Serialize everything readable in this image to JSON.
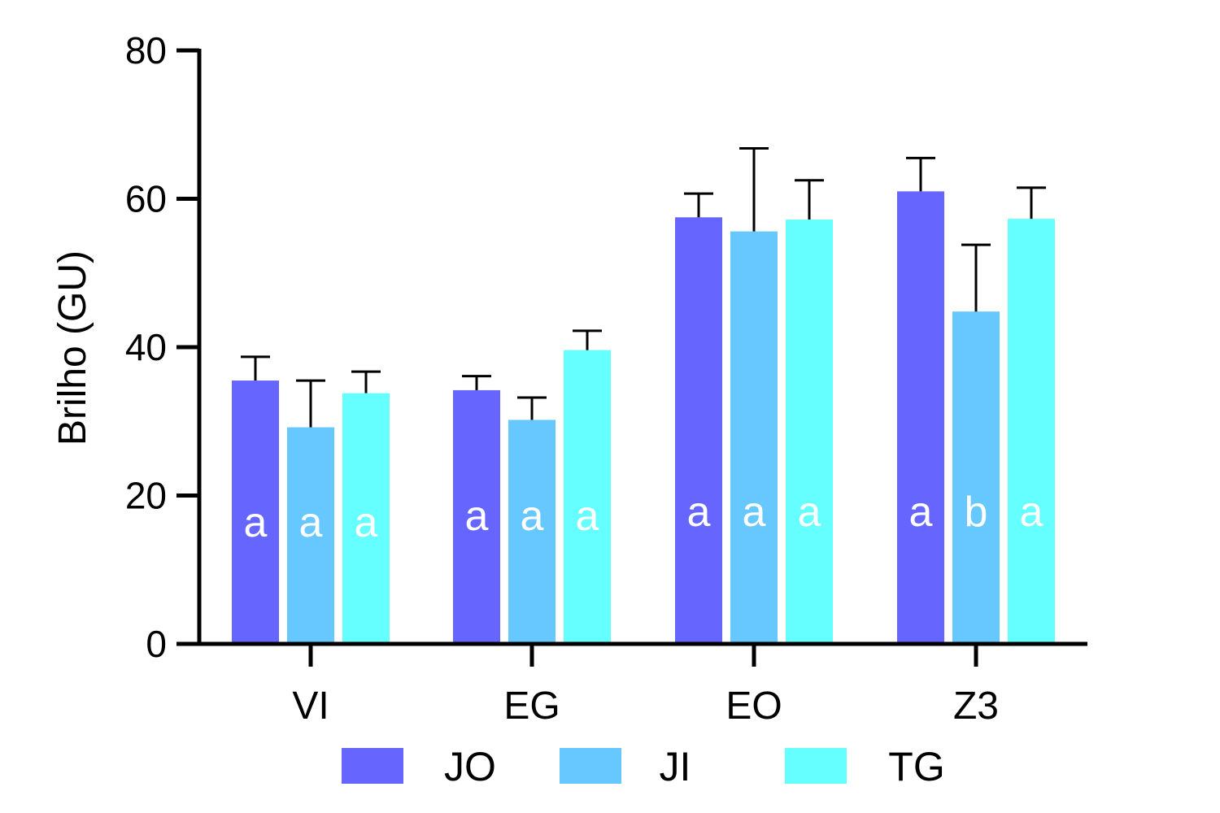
{
  "chart_data": {
    "type": "bar",
    "title": "",
    "xlabel": "",
    "ylabel": "Brilho (GU)",
    "ylim": [
      0,
      80
    ],
    "yticks": [
      0,
      20,
      40,
      60,
      80
    ],
    "grid": false,
    "legend_position": "bottom",
    "categories": [
      "VI",
      "EG",
      "EO",
      "Z3"
    ],
    "series": [
      {
        "name": "JO",
        "color": "#6666ff",
        "values": [
          35.5,
          34.2,
          57.5,
          61.0
        ],
        "errors": [
          3.2,
          1.9,
          3.2,
          4.5
        ],
        "letters": [
          "a",
          "a",
          "a",
          "a"
        ]
      },
      {
        "name": "JI",
        "color": "#66c8ff",
        "values": [
          29.2,
          30.2,
          55.6,
          44.8
        ],
        "errors": [
          6.3,
          3.0,
          11.2,
          9.0
        ],
        "letters": [
          "a",
          "a",
          "a",
          "b"
        ]
      },
      {
        "name": "TG",
        "color": "#66ffff",
        "values": [
          33.8,
          39.6,
          57.2,
          57.3
        ],
        "errors": [
          2.9,
          2.6,
          5.3,
          4.2
        ],
        "letters": [
          "a",
          "a",
          "a",
          "a"
        ]
      }
    ]
  }
}
